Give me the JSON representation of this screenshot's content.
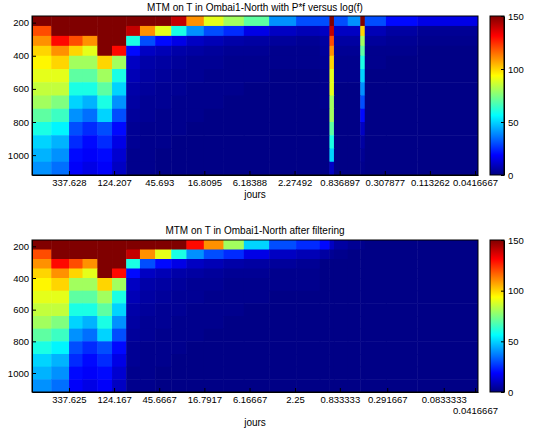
{
  "chart_data": [
    {
      "type": "heatmap",
      "title": "MTM on T in Ombai1-North with P*f versus log(f)",
      "xlabel": "jours",
      "log": "x",
      "color": "jet",
      "xlim": [
        766,
        0.039
      ],
      "ylim": [
        160,
        1120
      ],
      "xticks": [
        337.628,
        124.207,
        45.693,
        16.8095,
        6.18388,
        2.27492,
        0.836897,
        0.307877,
        0.113262,
        0.0416667
      ],
      "yticks": [
        200,
        400,
        600,
        800,
        1000
      ],
      "colorbar_lim": [
        0,
        150
      ],
      "colorbar_ticks": [
        0,
        50,
        100,
        150
      ],
      "x_edges": [
        766,
        500,
        337,
        250,
        180,
        130,
        95,
        70,
        50,
        35,
        25,
        17,
        11,
        7,
        4,
        2.2,
        1.3,
        1.05,
        0.95,
        0.7,
        0.53,
        0.48,
        0.3,
        0.15,
        0.039
      ],
      "y_edges": [
        160,
        220,
        280,
        340,
        400,
        480,
        560,
        640,
        720,
        800,
        880,
        960,
        1040,
        1120
      ],
      "z": [
        [
          150,
          160,
          170,
          170,
          170,
          170,
          170,
          170,
          160,
          140,
          110,
          90,
          80,
          70,
          40,
          30,
          30,
          160,
          30,
          40,
          150,
          30,
          20,
          15
        ],
        [
          120,
          150,
          160,
          160,
          170,
          160,
          140,
          110,
          90,
          60,
          40,
          30,
          25,
          15,
          10,
          8,
          10,
          140,
          10,
          10,
          100,
          8,
          5,
          3
        ],
        [
          110,
          130,
          120,
          110,
          160,
          150,
          60,
          30,
          20,
          15,
          10,
          8,
          6,
          5,
          4,
          3,
          5,
          120,
          5,
          5,
          80,
          4,
          3,
          2
        ],
        [
          100,
          110,
          100,
          90,
          150,
          130,
          20,
          10,
          8,
          6,
          5,
          4,
          3,
          3,
          2,
          2,
          4,
          110,
          3,
          3,
          70,
          2,
          2,
          1
        ],
        [
          95,
          100,
          80,
          80,
          100,
          80,
          10,
          6,
          5,
          4,
          3,
          3,
          2,
          2,
          2,
          2,
          3,
          100,
          2,
          2,
          60,
          2,
          1,
          1
        ],
        [
          90,
          90,
          70,
          70,
          80,
          60,
          8,
          5,
          4,
          3,
          3,
          2,
          2,
          2,
          1,
          1,
          2,
          90,
          2,
          2,
          50,
          1,
          1,
          1
        ],
        [
          85,
          85,
          60,
          60,
          70,
          50,
          6,
          4,
          3,
          3,
          2,
          2,
          2,
          1,
          1,
          1,
          2,
          90,
          1,
          1,
          40,
          1,
          1,
          1
        ],
        [
          80,
          75,
          50,
          45,
          60,
          40,
          5,
          3,
          3,
          2,
          2,
          2,
          1,
          1,
          1,
          1,
          2,
          80,
          1,
          1,
          30,
          1,
          1,
          1
        ],
        [
          70,
          65,
          40,
          35,
          50,
          30,
          4,
          3,
          2,
          2,
          2,
          1,
          1,
          1,
          1,
          1,
          1,
          80,
          1,
          1,
          20,
          1,
          1,
          1
        ],
        [
          60,
          55,
          30,
          25,
          30,
          20,
          3,
          2,
          2,
          2,
          1,
          1,
          1,
          1,
          1,
          1,
          1,
          70,
          1,
          1,
          10,
          1,
          1,
          1
        ],
        [
          50,
          45,
          25,
          20,
          25,
          15,
          3,
          2,
          2,
          1,
          1,
          1,
          1,
          1,
          1,
          1,
          1,
          60,
          1,
          1,
          5,
          1,
          1,
          1
        ],
        [
          45,
          40,
          20,
          18,
          20,
          12,
          2,
          2,
          1,
          1,
          1,
          1,
          1,
          1,
          1,
          1,
          1,
          50,
          1,
          1,
          3,
          1,
          1,
          1
        ],
        [
          40,
          35,
          18,
          15,
          18,
          10,
          2,
          2,
          1,
          1,
          1,
          1,
          1,
          1,
          1,
          1,
          1,
          10,
          1,
          1,
          2,
          1,
          1,
          1
        ]
      ]
    },
    {
      "type": "heatmap",
      "title": "MTM on T in Ombai1-North after filtering",
      "xlabel": "jours",
      "log": "x",
      "color": "jet",
      "xlim": [
        766,
        0.039
      ],
      "ylim": [
        160,
        1120
      ],
      "xticks": [
        337.625,
        124.167,
        45.6667,
        16.7917,
        6.16667,
        2.25,
        0.833333,
        0.291667,
        0.0833333,
        0.0416667
      ],
      "yticks": [
        200,
        400,
        600,
        800,
        1000
      ],
      "colorbar_lim": [
        0,
        150
      ],
      "colorbar_ticks": [
        0,
        50,
        100,
        150
      ],
      "x_edges": [
        766,
        500,
        337,
        250,
        180,
        130,
        95,
        70,
        50,
        35,
        25,
        17,
        11,
        7,
        4,
        2.2,
        1.3,
        1.05,
        0.95,
        0.7,
        0.53,
        0.48,
        0.3,
        0.15,
        0.039
      ],
      "y_edges": [
        160,
        220,
        280,
        340,
        400,
        480,
        560,
        640,
        720,
        800,
        880,
        960,
        1040,
        1120
      ],
      "z": [
        [
          150,
          160,
          170,
          170,
          170,
          170,
          170,
          170,
          160,
          150,
          130,
          110,
          80,
          50,
          30,
          25,
          20,
          10,
          5,
          3,
          2,
          1,
          1,
          1
        ],
        [
          120,
          150,
          160,
          160,
          170,
          160,
          140,
          110,
          90,
          60,
          40,
          30,
          25,
          15,
          10,
          8,
          5,
          3,
          2,
          1,
          1,
          1,
          1,
          1
        ],
        [
          110,
          130,
          120,
          110,
          160,
          150,
          60,
          30,
          20,
          15,
          10,
          8,
          6,
          5,
          4,
          3,
          1,
          1,
          1,
          1,
          1,
          1,
          1,
          1
        ],
        [
          100,
          110,
          100,
          90,
          150,
          130,
          20,
          10,
          8,
          6,
          5,
          4,
          3,
          3,
          2,
          2,
          1,
          1,
          1,
          1,
          1,
          1,
          1,
          1
        ],
        [
          95,
          100,
          80,
          80,
          100,
          80,
          10,
          6,
          5,
          4,
          3,
          3,
          2,
          2,
          2,
          2,
          1,
          1,
          1,
          1,
          1,
          1,
          1,
          1
        ],
        [
          90,
          90,
          70,
          70,
          80,
          60,
          8,
          5,
          4,
          3,
          3,
          2,
          2,
          2,
          1,
          1,
          1,
          1,
          1,
          1,
          1,
          1,
          1,
          1
        ],
        [
          85,
          85,
          60,
          60,
          70,
          50,
          6,
          4,
          3,
          3,
          2,
          2,
          2,
          1,
          1,
          1,
          1,
          1,
          1,
          1,
          1,
          1,
          1,
          1
        ],
        [
          80,
          75,
          50,
          45,
          60,
          40,
          5,
          3,
          3,
          2,
          2,
          2,
          1,
          1,
          1,
          1,
          1,
          1,
          1,
          1,
          1,
          1,
          1,
          1
        ],
        [
          70,
          65,
          40,
          35,
          50,
          30,
          4,
          3,
          2,
          2,
          2,
          1,
          1,
          1,
          1,
          1,
          1,
          1,
          1,
          1,
          1,
          1,
          1,
          1
        ],
        [
          60,
          55,
          30,
          25,
          30,
          20,
          3,
          2,
          2,
          2,
          1,
          1,
          1,
          1,
          1,
          1,
          1,
          1,
          1,
          1,
          1,
          1,
          1,
          1
        ],
        [
          50,
          45,
          25,
          20,
          25,
          15,
          3,
          2,
          2,
          1,
          1,
          1,
          1,
          1,
          1,
          1,
          1,
          1,
          1,
          1,
          1,
          1,
          1,
          1
        ],
        [
          45,
          40,
          20,
          18,
          20,
          12,
          2,
          2,
          1,
          1,
          1,
          1,
          1,
          1,
          1,
          1,
          1,
          1,
          1,
          1,
          1,
          1,
          1,
          1
        ],
        [
          40,
          35,
          18,
          15,
          18,
          10,
          2,
          2,
          1,
          1,
          1,
          1,
          1,
          1,
          1,
          1,
          1,
          1,
          1,
          1,
          1,
          1,
          1,
          1
        ]
      ]
    }
  ]
}
